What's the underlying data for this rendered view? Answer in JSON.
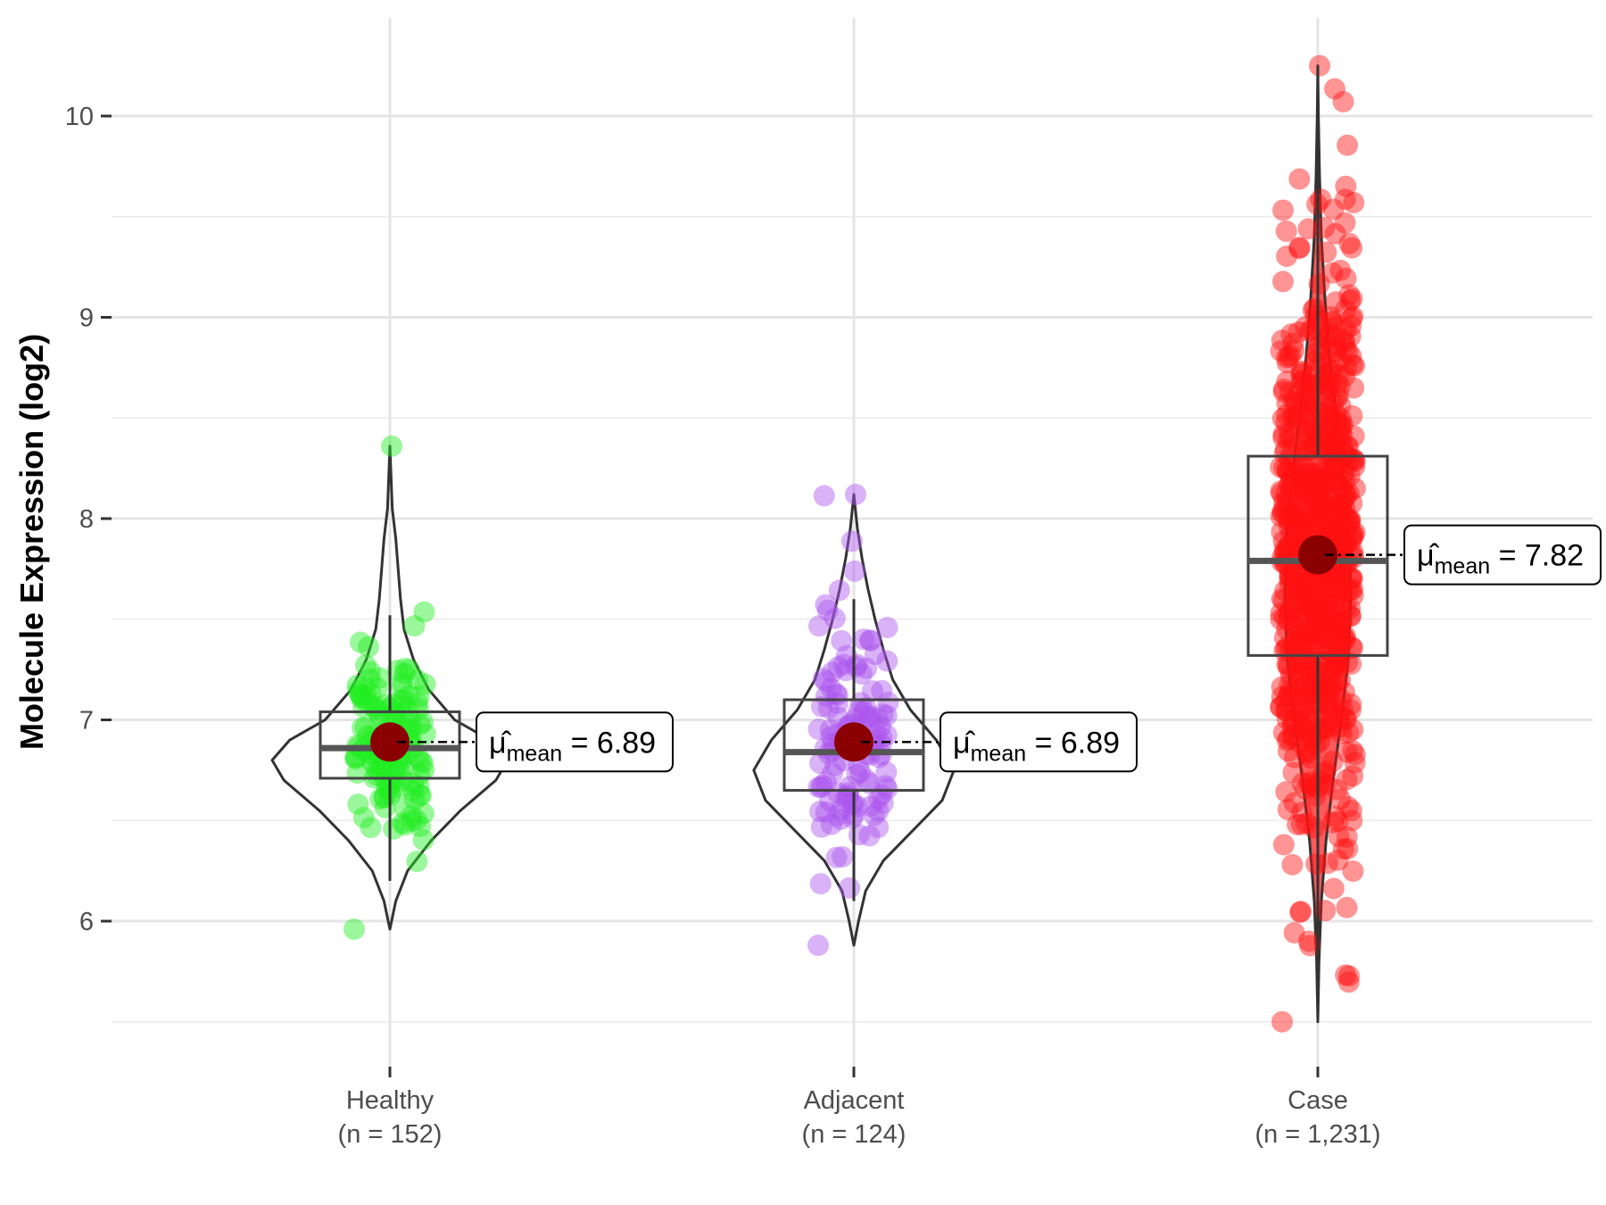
{
  "chart_data": {
    "type": "violin-box-scatter",
    "title": "",
    "xlabel": "",
    "ylabel": "Molecule Expression (log2)",
    "ylim": [
      5.4,
      10.5
    ],
    "yticks": [
      6,
      7,
      8,
      9,
      10
    ],
    "grid": true,
    "groups": [
      {
        "name": "Healthy",
        "n_label": "(n = 152)",
        "color": "#22ee22",
        "fill": "none",
        "n_points": 152,
        "min": 5.96,
        "q1": 6.71,
        "median": 6.86,
        "q3": 7.04,
        "max": 8.36,
        "whisker_low": 6.2,
        "whisker_high": 7.52,
        "mean": 6.89,
        "mean_label": "6.89",
        "violin": [
          [
            5.96,
            0.0
          ],
          [
            6.1,
            0.05
          ],
          [
            6.25,
            0.15
          ],
          [
            6.4,
            0.35
          ],
          [
            6.55,
            0.6
          ],
          [
            6.7,
            0.9
          ],
          [
            6.8,
            1.0
          ],
          [
            6.9,
            0.85
          ],
          [
            7.0,
            0.55
          ],
          [
            7.15,
            0.33
          ],
          [
            7.3,
            0.2
          ],
          [
            7.45,
            0.12
          ],
          [
            7.6,
            0.09
          ],
          [
            7.75,
            0.07
          ],
          [
            7.9,
            0.05
          ],
          [
            8.05,
            0.02
          ],
          [
            8.36,
            0.0
          ]
        ]
      },
      {
        "name": "Adjacent",
        "n_label": "(n = 124)",
        "color": "#aa55ee",
        "fill": "none",
        "n_points": 124,
        "min": 5.88,
        "q1": 6.65,
        "median": 6.84,
        "q3": 7.1,
        "max": 8.12,
        "whisker_low": 6.1,
        "whisker_high": 7.6,
        "mean": 6.89,
        "mean_label": "6.89",
        "violin": [
          [
            5.88,
            0.0
          ],
          [
            6.0,
            0.04
          ],
          [
            6.15,
            0.1
          ],
          [
            6.3,
            0.25
          ],
          [
            6.45,
            0.5
          ],
          [
            6.6,
            0.75
          ],
          [
            6.75,
            0.85
          ],
          [
            6.9,
            0.7
          ],
          [
            7.05,
            0.48
          ],
          [
            7.2,
            0.33
          ],
          [
            7.35,
            0.25
          ],
          [
            7.5,
            0.18
          ],
          [
            7.65,
            0.12
          ],
          [
            7.8,
            0.07
          ],
          [
            7.95,
            0.03
          ],
          [
            8.12,
            0.0
          ]
        ]
      },
      {
        "name": "Case",
        "n_label": "(n = 1,231)",
        "color": "#ff1111",
        "fill": "#ff5a5a",
        "n_points": 1231,
        "min": 5.5,
        "q1": 7.32,
        "median": 7.79,
        "q3": 8.31,
        "max": 10.25,
        "whisker_low": 5.5,
        "whisker_high": 10.25,
        "mean": 7.82,
        "mean_label": "7.82",
        "violin": [
          [
            5.5,
            0.0
          ],
          [
            5.8,
            0.01
          ],
          [
            6.1,
            0.03
          ],
          [
            6.4,
            0.07
          ],
          [
            6.7,
            0.13
          ],
          [
            7.0,
            0.2
          ],
          [
            7.3,
            0.26
          ],
          [
            7.6,
            0.28
          ],
          [
            7.9,
            0.27
          ],
          [
            8.2,
            0.22
          ],
          [
            8.5,
            0.16
          ],
          [
            8.8,
            0.1
          ],
          [
            9.1,
            0.06
          ],
          [
            9.4,
            0.03
          ],
          [
            9.7,
            0.015
          ],
          [
            10.0,
            0.005
          ],
          [
            10.25,
            0.0
          ]
        ]
      }
    ],
    "annotation_symbol": "μ̂",
    "annotation_subscript": "mean",
    "annotation_operator": "="
  }
}
